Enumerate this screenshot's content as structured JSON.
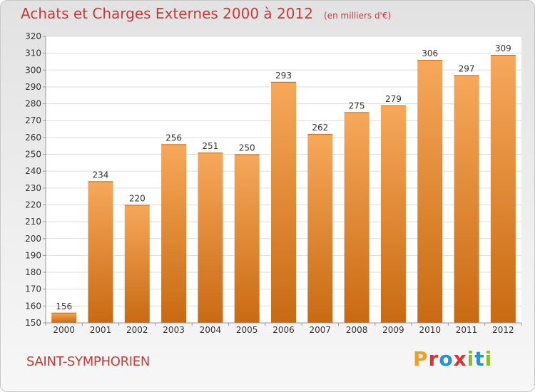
{
  "header": {
    "title": "Achats et Charges Externes 2000 à 2012",
    "subtitle": "(en milliers d'€)"
  },
  "footer": {
    "commune": "SAINT-SYMPHORIEN",
    "logo_text": "Proxiti",
    "logo_colors": [
      "#f0a020",
      "#e03030",
      "#2b8fd8",
      "#e03030",
      "#8bbf2a",
      "#2b8fd8",
      "#8bbf2a"
    ]
  },
  "chart_data": {
    "type": "bar",
    "title": "Achats et Charges Externes 2000 à 2012",
    "subtitle": "(en milliers d'€)",
    "categories": [
      "2000",
      "2001",
      "2002",
      "2003",
      "2004",
      "2005",
      "2006",
      "2007",
      "2008",
      "2009",
      "2010",
      "2011",
      "2012"
    ],
    "values": [
      156,
      234,
      220,
      256,
      251,
      250,
      293,
      262,
      275,
      279,
      306,
      297,
      309
    ],
    "ylim": [
      150,
      320
    ],
    "yticks": [
      150,
      160,
      170,
      180,
      190,
      200,
      210,
      220,
      230,
      240,
      250,
      260,
      270,
      280,
      290,
      300,
      310,
      320
    ],
    "grid": true,
    "bar_color_top": "#f7a85a",
    "bar_color_bottom": "#c96a12"
  }
}
